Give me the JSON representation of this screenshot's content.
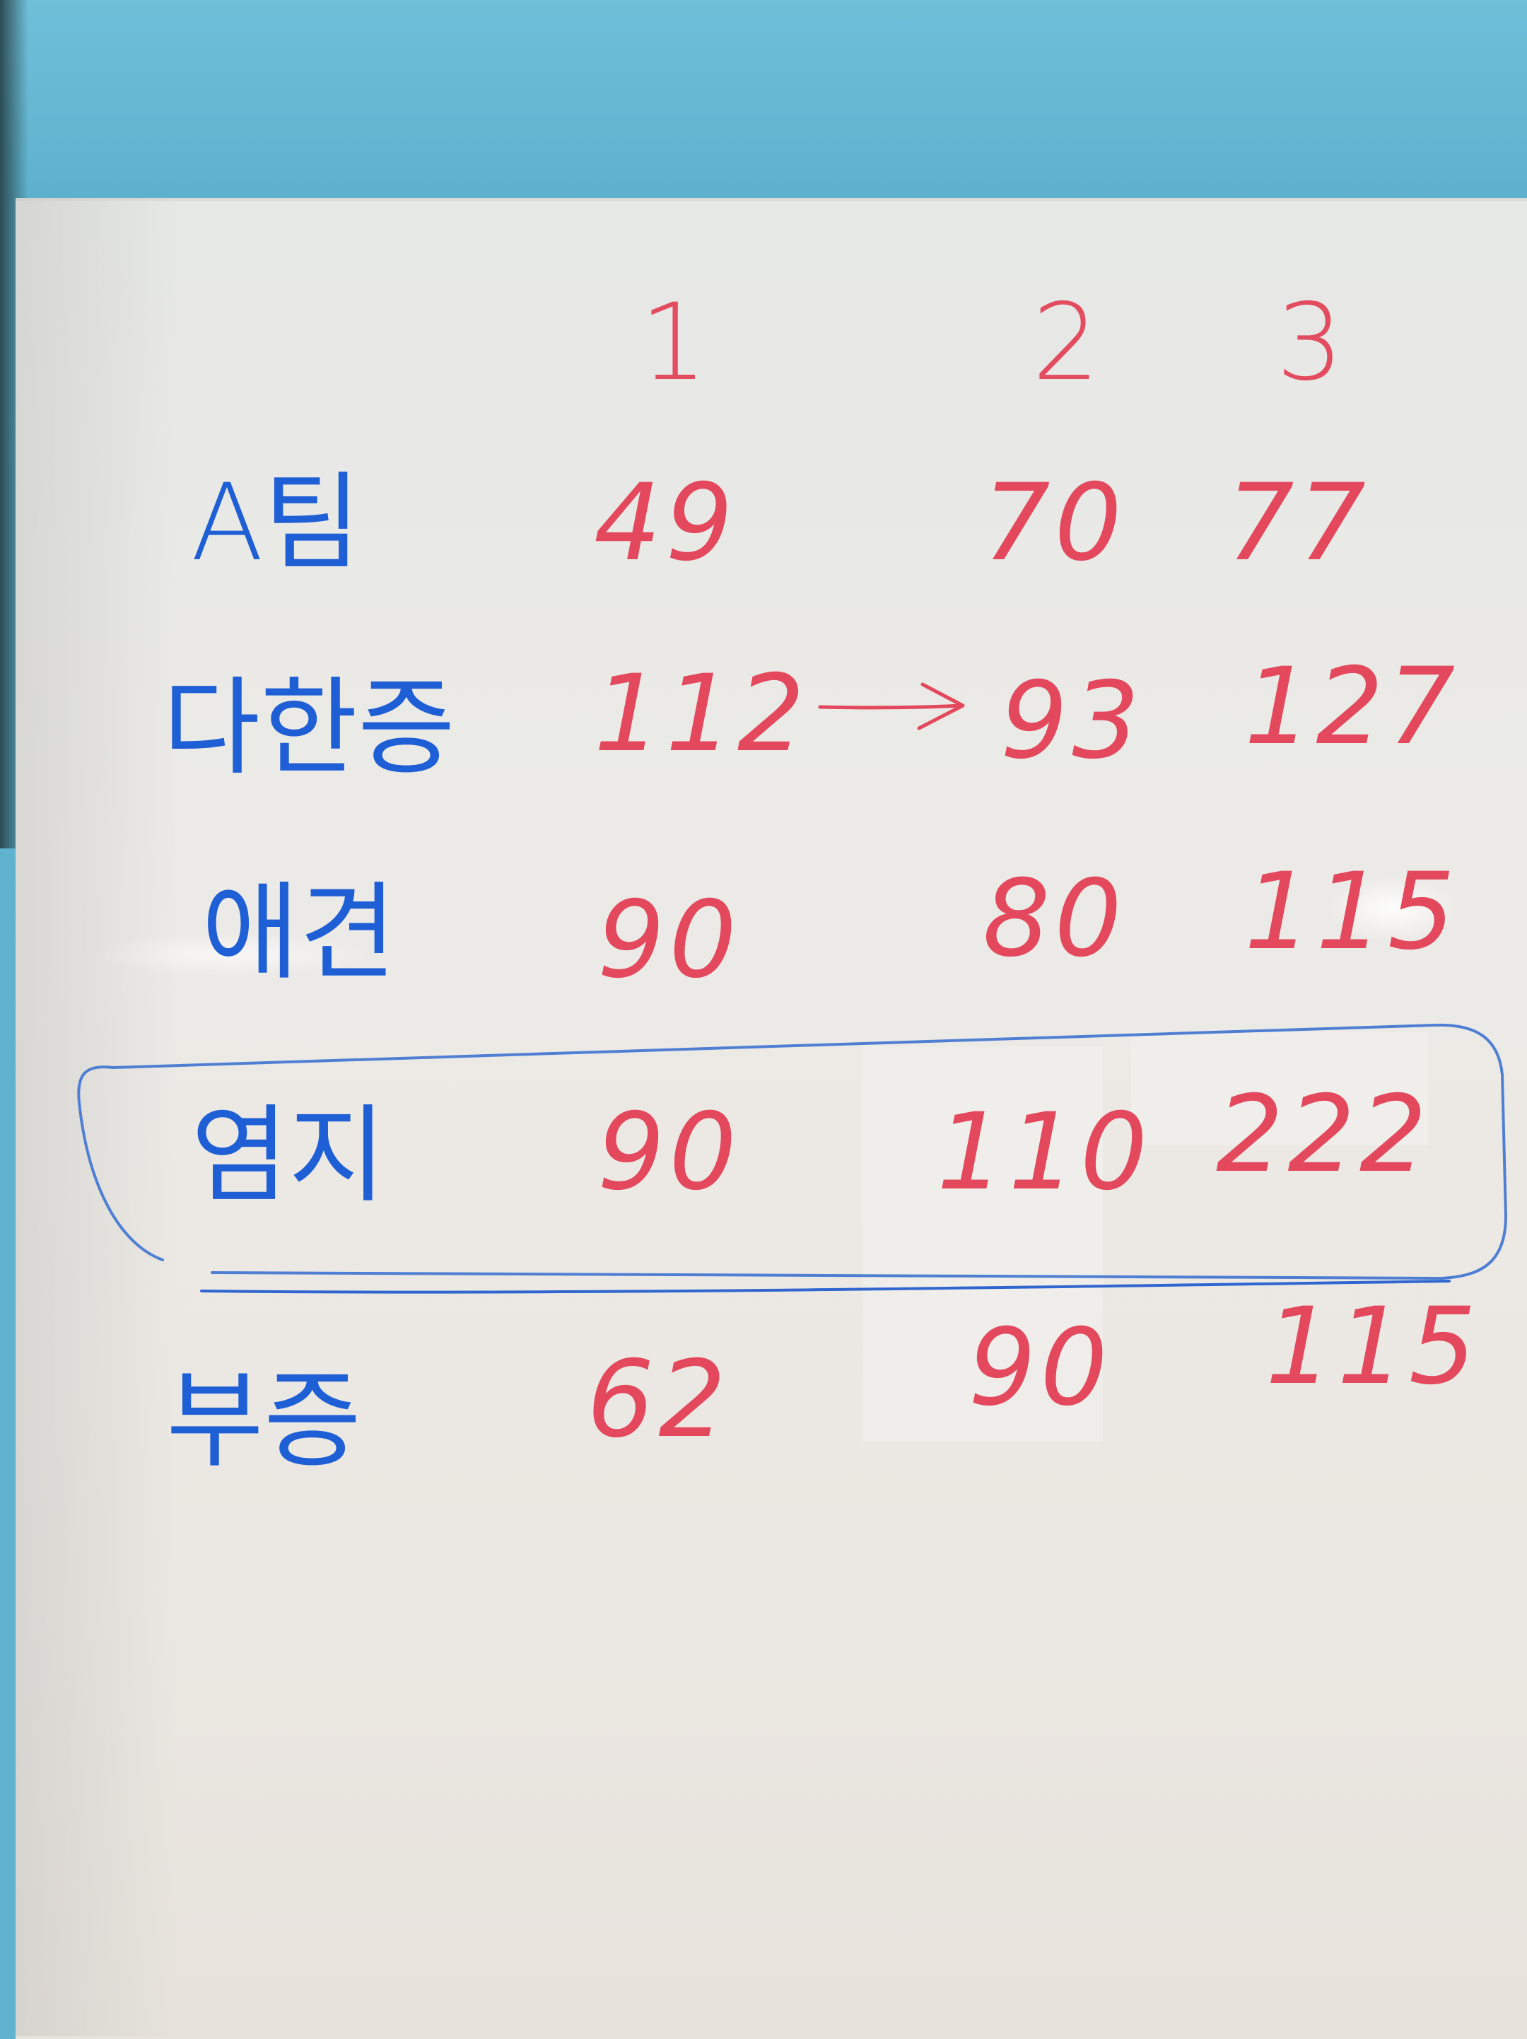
{
  "board": {
    "columns": [
      "1",
      "2",
      "3"
    ],
    "rows": [
      {
        "label": "A팀",
        "values": [
          "49",
          "70",
          "77"
        ]
      },
      {
        "label": "다한증",
        "values": [
          "112",
          "93",
          "127"
        ]
      },
      {
        "label": "애견",
        "values": [
          "90",
          "80",
          "115"
        ]
      },
      {
        "label": "염지",
        "values": [
          "90",
          "110",
          "222"
        ]
      },
      {
        "label": "부증",
        "values": [
          "62",
          "90",
          "115"
        ]
      }
    ]
  },
  "colors": {
    "marker_blue": "#1f5fd6",
    "marker_red": "#e3485d",
    "board": "#e8e8e5",
    "wall": "#5fb3cf"
  }
}
